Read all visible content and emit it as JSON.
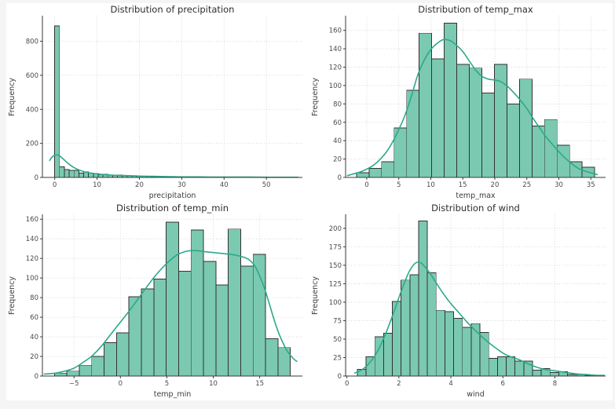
{
  "figure": {
    "page_background": "#f5f5f6",
    "background": "#ffffff"
  },
  "colors": {
    "bar_fill": "#7ac9b0",
    "bar_edge": "#333333",
    "kde_line": "#2ba98b",
    "grid": "#cccccc",
    "spine": "#3a3a3a",
    "tick_text": "#4a4a4a"
  },
  "chart_data": [
    {
      "type": "bar",
      "subtype": "histogram-with-kde",
      "title": "Distribution of precipitation",
      "xlabel": "precipitation",
      "ylabel": "Frequency",
      "bin_start": 0.0,
      "bin_width": 1.14,
      "values": [
        890,
        62,
        47,
        41,
        42,
        26,
        33,
        26,
        23,
        15,
        19,
        13,
        12,
        13,
        9,
        10,
        8,
        7,
        8,
        6,
        5,
        4,
        4,
        3,
        3,
        4,
        2,
        2,
        3,
        2,
        2,
        1,
        2,
        1,
        2,
        1,
        1,
        1,
        1,
        0,
        1,
        0,
        0,
        1,
        0,
        0,
        0,
        0,
        0,
        1
      ],
      "kde": [
        [
          -1.2,
          100
        ],
        [
          -0.6,
          120
        ],
        [
          0,
          130
        ],
        [
          0.7,
          132
        ],
        [
          1.4,
          122
        ],
        [
          2.2,
          104
        ],
        [
          3,
          86
        ],
        [
          3.8,
          70
        ],
        [
          4.6,
          57
        ],
        [
          5.5,
          46
        ],
        [
          6.5,
          37
        ],
        [
          7.5,
          30
        ],
        [
          8.5,
          26
        ],
        [
          9.5,
          22
        ],
        [
          11,
          18
        ],
        [
          12.5,
          15
        ],
        [
          14,
          13
        ],
        [
          16,
          11
        ],
        [
          18,
          10
        ],
        [
          20,
          8
        ],
        [
          22,
          7
        ],
        [
          24,
          6
        ],
        [
          26,
          5
        ],
        [
          28,
          4
        ],
        [
          31,
          3
        ],
        [
          34,
          3
        ],
        [
          38,
          2
        ],
        [
          42,
          2
        ],
        [
          46,
          2
        ],
        [
          50,
          1
        ],
        [
          54,
          1
        ],
        [
          57.5,
          1
        ]
      ],
      "xlim": [
        -2.9,
        58.5
      ],
      "ylim": [
        0,
        950
      ],
      "xticks": [
        0,
        10,
        20,
        30,
        40,
        50
      ],
      "yticks": [
        0,
        200,
        400,
        600,
        800
      ],
      "grid": true,
      "legend": null
    },
    {
      "type": "bar",
      "subtype": "histogram-with-kde",
      "title": "Distribution of temp_max",
      "xlabel": "temp_max",
      "ylabel": "Frequency",
      "bin_start": -1.6,
      "bin_width": 1.958,
      "values": [
        5,
        10,
        17,
        54,
        95,
        157,
        129,
        168,
        123,
        119,
        92,
        123,
        80,
        107,
        56,
        63,
        35,
        17,
        11
      ],
      "kde": [
        [
          -3,
          2
        ],
        [
          -2,
          4
        ],
        [
          -1,
          6
        ],
        [
          0,
          9
        ],
        [
          1,
          13
        ],
        [
          2,
          19
        ],
        [
          3,
          27
        ],
        [
          4,
          38
        ],
        [
          5,
          52
        ],
        [
          6,
          68
        ],
        [
          7,
          89
        ],
        [
          8,
          112
        ],
        [
          9,
          128
        ],
        [
          10,
          139
        ],
        [
          11,
          146
        ],
        [
          12,
          150
        ],
        [
          13,
          149
        ],
        [
          14,
          144
        ],
        [
          15,
          137
        ],
        [
          16,
          127
        ],
        [
          17,
          117
        ],
        [
          18,
          110
        ],
        [
          19,
          107
        ],
        [
          20,
          106
        ],
        [
          21,
          104
        ],
        [
          22,
          99
        ],
        [
          23,
          92
        ],
        [
          24,
          84
        ],
        [
          25,
          75
        ],
        [
          26,
          64
        ],
        [
          27,
          54
        ],
        [
          28,
          44
        ],
        [
          29,
          36
        ],
        [
          30,
          28
        ],
        [
          31,
          21
        ],
        [
          32,
          15
        ],
        [
          33,
          10
        ],
        [
          34,
          7
        ],
        [
          35,
          5
        ],
        [
          36,
          3
        ]
      ],
      "xlim": [
        -3.3,
        37.3
      ],
      "ylim": [
        0,
        176
      ],
      "xticks": [
        0,
        5,
        10,
        15,
        20,
        25,
        30,
        35
      ],
      "yticks": [
        0,
        20,
        40,
        60,
        80,
        100,
        120,
        140,
        160
      ],
      "grid": true,
      "legend": null
    },
    {
      "type": "bar",
      "subtype": "histogram-with-kde",
      "title": "Distribution of temp_min",
      "xlabel": "temp_min",
      "ylabel": "Frequency",
      "bin_start": -7.1,
      "bin_width": 1.337,
      "values": [
        3,
        5,
        11,
        20,
        34,
        44,
        81,
        89,
        99,
        157,
        107,
        149,
        117,
        93,
        150,
        112,
        124,
        38,
        29
      ],
      "kde": [
        [
          -8.2,
          2
        ],
        [
          -7,
          3
        ],
        [
          -6,
          5
        ],
        [
          -5,
          8
        ],
        [
          -4,
          14
        ],
        [
          -3,
          21
        ],
        [
          -2,
          31
        ],
        [
          -1,
          43
        ],
        [
          0,
          55
        ],
        [
          1,
          67
        ],
        [
          2,
          80
        ],
        [
          3,
          93
        ],
        [
          4,
          105
        ],
        [
          5,
          115
        ],
        [
          6,
          123
        ],
        [
          7,
          127
        ],
        [
          8,
          128
        ],
        [
          9,
          127
        ],
        [
          10,
          126
        ],
        [
          11,
          125
        ],
        [
          12,
          124
        ],
        [
          13,
          122
        ],
        [
          13.8,
          119
        ],
        [
          14.5,
          112
        ],
        [
          15,
          102
        ],
        [
          15.5,
          90
        ],
        [
          16,
          75
        ],
        [
          16.5,
          59
        ],
        [
          17,
          45
        ],
        [
          17.5,
          34
        ],
        [
          18,
          25
        ],
        [
          18.6,
          18
        ],
        [
          19,
          15
        ]
      ],
      "xlim": [
        -8.4,
        19.6
      ],
      "ylim": [
        0,
        165
      ],
      "xticks": [
        -5,
        0,
        5,
        10,
        15
      ],
      "yticks": [
        0,
        20,
        40,
        60,
        80,
        100,
        120,
        140,
        160
      ],
      "grid": true,
      "legend": null
    },
    {
      "type": "bar",
      "subtype": "histogram-with-kde",
      "title": "Distribution of wind",
      "xlabel": "wind",
      "ylabel": "Frequency",
      "bin_start": 0.4,
      "bin_width": 0.337,
      "values": [
        9,
        26,
        53,
        58,
        101,
        130,
        137,
        210,
        140,
        89,
        87,
        78,
        66,
        71,
        59,
        24,
        26,
        26,
        20,
        20,
        8,
        10,
        5,
        6,
        2,
        2,
        1
      ],
      "kde": [
        [
          0.3,
          4
        ],
        [
          0.6,
          9
        ],
        [
          0.9,
          19
        ],
        [
          1.2,
          35
        ],
        [
          1.5,
          58
        ],
        [
          1.8,
          86
        ],
        [
          2.1,
          116
        ],
        [
          2.35,
          138
        ],
        [
          2.55,
          150
        ],
        [
          2.7,
          154
        ],
        [
          2.85,
          153
        ],
        [
          3.0,
          148
        ],
        [
          3.2,
          139
        ],
        [
          3.4,
          128
        ],
        [
          3.7,
          112
        ],
        [
          4.0,
          98
        ],
        [
          4.3,
          86
        ],
        [
          4.6,
          74
        ],
        [
          4.9,
          63
        ],
        [
          5.2,
          53
        ],
        [
          5.5,
          44
        ],
        [
          5.8,
          36
        ],
        [
          6.1,
          29
        ],
        [
          6.4,
          25
        ],
        [
          6.7,
          21
        ],
        [
          7.0,
          16
        ],
        [
          7.3,
          12
        ],
        [
          7.6,
          9
        ],
        [
          8.0,
          7
        ],
        [
          8.4,
          5
        ],
        [
          8.8,
          3
        ],
        [
          9.2,
          2
        ],
        [
          9.6,
          1
        ],
        [
          9.9,
          1
        ]
      ],
      "xlim": [
        -0.05,
        9.95
      ],
      "ylim": [
        0,
        219
      ],
      "xticks": [
        0,
        2,
        4,
        6,
        8
      ],
      "yticks": [
        0,
        25,
        50,
        75,
        100,
        125,
        150,
        175,
        200
      ],
      "grid": true,
      "legend": null
    }
  ]
}
